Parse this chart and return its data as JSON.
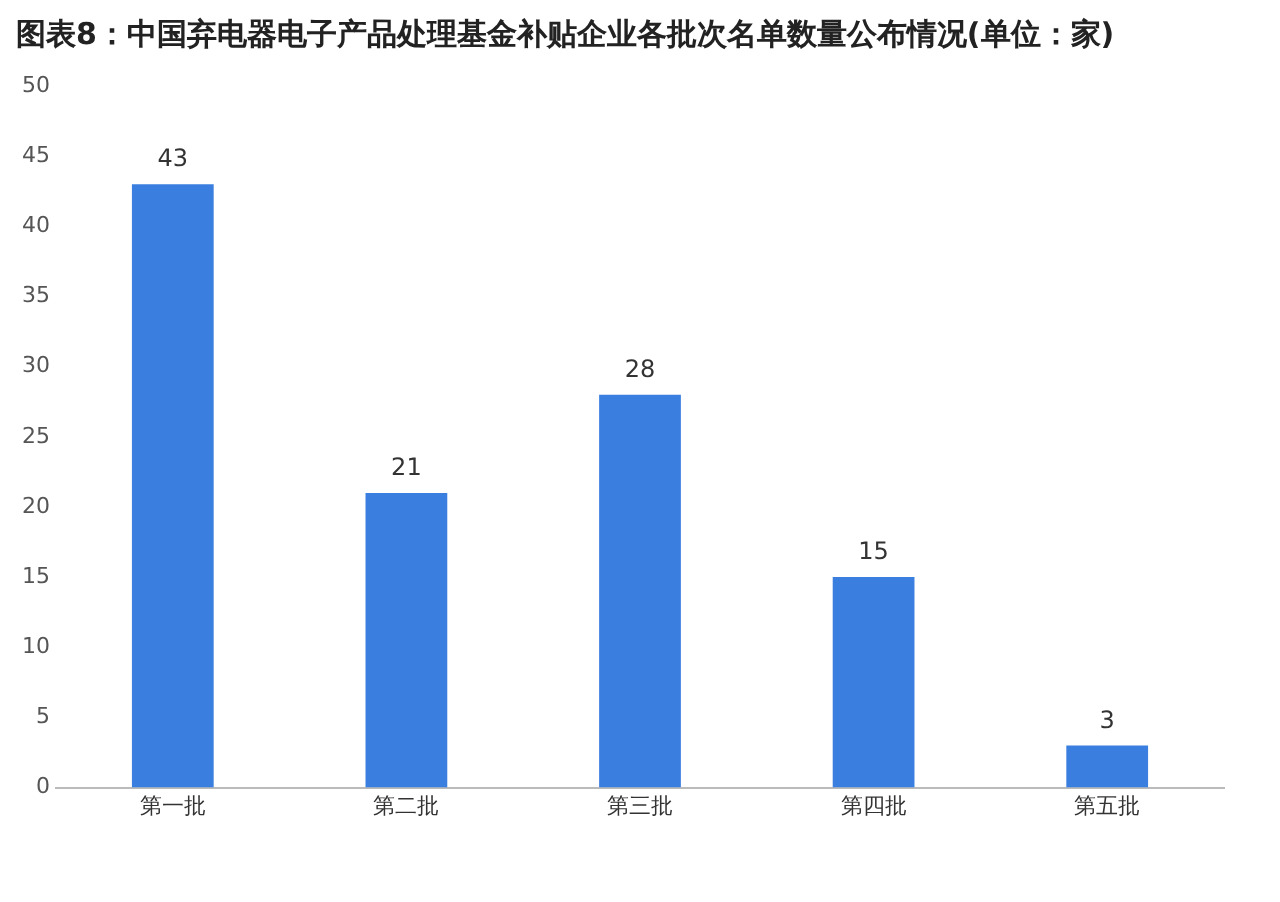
{
  "chart_data": {
    "type": "bar",
    "title": "图表8：中国弃电器电子产品处理基金补贴企业各批次名单数量公布情况(单位：家)",
    "categories": [
      "第一批",
      "第二批",
      "第三批",
      "第四批",
      "第五批"
    ],
    "values": [
      43,
      21,
      28,
      15,
      3
    ],
    "color": "#3a7fe0",
    "ylim": [
      0,
      50
    ],
    "yticks": [
      0,
      5,
      10,
      15,
      20,
      25,
      30,
      35,
      40,
      45,
      50
    ],
    "grid": false,
    "data_labels": true
  }
}
